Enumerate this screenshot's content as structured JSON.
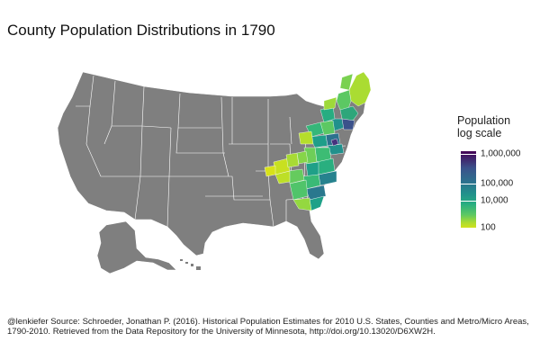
{
  "title": "County Population Distributions in 1790",
  "legend": {
    "title_line1": "Population",
    "title_line2": "log scale",
    "ticks": [
      "1,000,000",
      "100,000",
      "10,000",
      "100"
    ]
  },
  "caption": {
    "handle": "@lenkiefer",
    "source": "Source: Schroeder, Jonathan P. (2016). Historical Population Estimates for 2010 U.S. States, Counties and Metro/Micro Areas, 1790-2010. Retrieved from the Data Repository for the University of Minnesota, http://doi.org/10.13020/D6XW2H."
  },
  "colors": {
    "no_data": "#7f7f7f",
    "border": "#ffffff",
    "scale_low": "#d8e219",
    "scale_high": "#440154"
  },
  "chart_data": {
    "type": "heatmap",
    "title": "County Population Distributions in 1790",
    "color_scale": "viridis",
    "scale": "log",
    "legend_breaks": [
      100,
      10000,
      100000,
      1000000
    ],
    "legend_labels": [
      "100",
      "10,000",
      "100,000",
      "1,000,000"
    ],
    "legend_position": "right"
  }
}
